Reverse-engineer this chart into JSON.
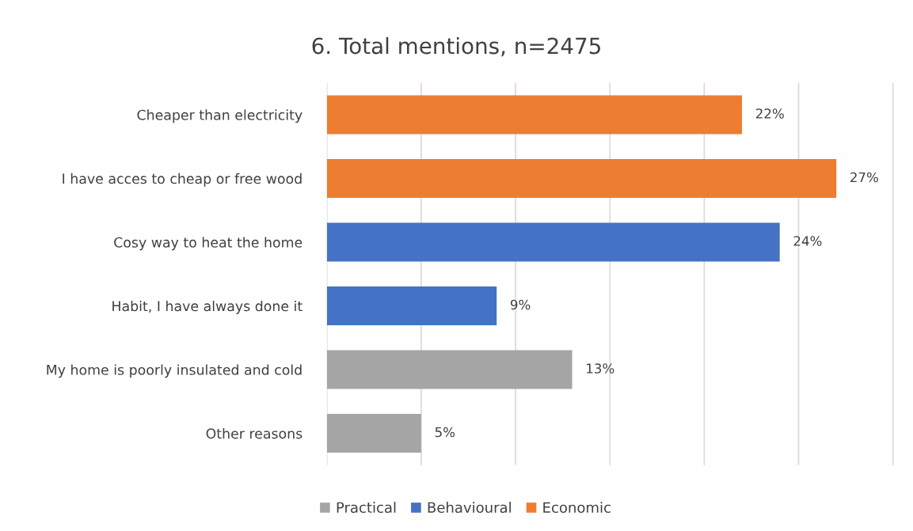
{
  "chart_data": {
    "type": "bar",
    "orientation": "horizontal",
    "title": "6. Total mentions, n=2475",
    "categories": [
      "Cheaper than electricity",
      "I have acces to cheap or free wood",
      "Cosy way to heat the home",
      "Habit, I have always done it",
      "My home is poorly insulated and cold",
      "Other reasons"
    ],
    "series": [
      {
        "name": "Practical",
        "color": "#a5a5a5",
        "values": [
          null,
          null,
          null,
          null,
          13,
          5
        ],
        "value_labels": [
          null,
          null,
          null,
          null,
          "13%",
          "5%"
        ]
      },
      {
        "name": "Behavioural",
        "color": "#4472c4",
        "values": [
          null,
          null,
          24,
          9,
          null,
          null
        ],
        "value_labels": [
          null,
          null,
          "24%",
          "9%",
          null,
          null
        ]
      },
      {
        "name": "Economic",
        "color": "#ed7d31",
        "values": [
          22,
          27,
          null,
          null,
          null,
          null
        ],
        "value_labels": [
          "22%",
          "27%",
          null,
          null,
          null,
          null
        ]
      }
    ],
    "tick_labels": "y",
    "grid": "x",
    "legend": "bottom"
  }
}
